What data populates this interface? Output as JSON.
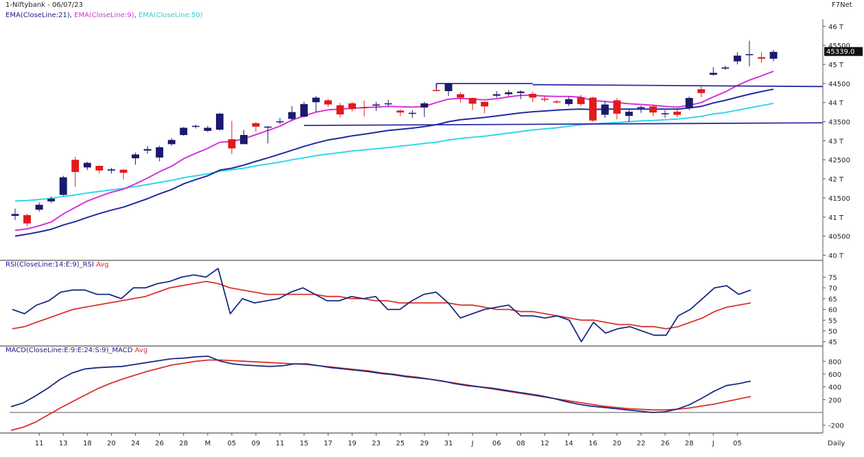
{
  "header": {
    "title": "1-Niftybank - 06/07/23",
    "brand": "F7Net",
    "ema_labels": [
      {
        "text": "EMA(CloseLine:21)",
        "color": "#1a1a8c"
      },
      {
        "text": ", ",
        "color": "#1a1a8c"
      },
      {
        "text": "EMA(CloseLine:9)",
        "color": "#d633d6"
      },
      {
        "text": ", ",
        "color": "#1a1a8c"
      },
      {
        "text": "EMA(CloseLine:50)",
        "color": "#33cccc"
      }
    ],
    "last_price_label": "45339.0"
  },
  "rsi_header": {
    "name": "RSI(CloseLine:14:E:9)_RSI",
    "avg": "Avg"
  },
  "macd_header": {
    "name": "MACD(CloseLine:E:9:E:24:S:9)_MACD",
    "avg": "Avg"
  },
  "colors": {
    "up_candle": "#1a1a6e",
    "down_candle": "#e01b1b",
    "ema21": "#1f2a9e",
    "ema9": "#d633d6",
    "ema50": "#33d6e6",
    "rsi": "#1a2a80",
    "rsi_avg": "#d8322b",
    "macd": "#1a2a80",
    "macd_avg": "#d8322b",
    "trendline": "#2a2aa8",
    "axis": "#333333"
  },
  "chart_data": [
    {
      "type": "candlestick",
      "title": "1-Niftybank - 06/07/23",
      "y_ticks": [
        {
          "value": 46000,
          "label": "46 T"
        },
        {
          "value": 45500,
          "label": "45500"
        },
        {
          "value": 45000,
          "label": "45 T"
        },
        {
          "value": 44500,
          "label": "44500"
        },
        {
          "value": 44000,
          "label": "44 T"
        },
        {
          "value": 43500,
          "label": "43500"
        },
        {
          "value": 43000,
          "label": "43 T"
        },
        {
          "value": 42500,
          "label": "42500"
        },
        {
          "value": 42000,
          "label": "42 T"
        },
        {
          "value": 41500,
          "label": "41500"
        },
        {
          "value": 41000,
          "label": "41 T"
        },
        {
          "value": 40500,
          "label": "40500"
        },
        {
          "value": 40000,
          "label": "40 T"
        }
      ],
      "ylim": [
        39900,
        46150
      ],
      "x_labels": [
        "11",
        "13",
        "18",
        "20",
        "24",
        "26",
        "28",
        "M",
        "05",
        "09",
        "11",
        "15",
        "17",
        "19",
        "23",
        "25",
        "29",
        "31",
        "J",
        "06",
        "08",
        "12",
        "14",
        "16",
        "20",
        "22",
        "26",
        "28",
        "J",
        "05"
      ],
      "x_label_index": [
        2,
        4,
        6,
        8,
        10,
        12,
        14,
        16,
        18,
        20,
        22,
        24,
        26,
        28,
        30,
        32,
        34,
        36,
        38,
        40,
        42,
        44,
        46,
        48,
        50,
        52,
        54,
        56,
        58,
        60
      ],
      "xlabel_right": "Daily",
      "ohlc": [
        [
          41030,
          41080,
          41220,
          40920
        ],
        [
          41050,
          40830,
          41080,
          40760
        ],
        [
          41190,
          41320,
          41380,
          41140
        ],
        [
          41410,
          41480,
          41540,
          41370
        ],
        [
          41580,
          42040,
          42080,
          41560
        ],
        [
          42500,
          42180,
          42580,
          41790
        ],
        [
          42300,
          42420,
          42450,
          42230
        ],
        [
          42340,
          42220,
          42350,
          42140
        ],
        [
          42220,
          42250,
          42290,
          42140
        ],
        [
          42240,
          42160,
          42260,
          41980
        ],
        [
          42540,
          42640,
          42690,
          42370
        ],
        [
          42740,
          42780,
          42860,
          42660
        ],
        [
          42560,
          42830,
          42870,
          42460
        ],
        [
          42910,
          43020,
          43070,
          42870
        ],
        [
          43150,
          43340,
          43360,
          43130
        ],
        [
          43380,
          43390,
          43420,
          43320
        ],
        [
          43260,
          43340,
          43390,
          43230
        ],
        [
          43290,
          43710,
          43730,
          43270
        ],
        [
          43040,
          42800,
          43520,
          42650
        ],
        [
          42910,
          43150,
          43280,
          42930
        ],
        [
          43460,
          43370,
          43490,
          43240
        ],
        [
          43360,
          43370,
          43380,
          42930
        ],
        [
          43510,
          43510,
          43600,
          43430
        ],
        [
          43570,
          43750,
          43910,
          43520
        ],
        [
          43630,
          43960,
          44020,
          43610
        ],
        [
          44010,
          44130,
          44170,
          43760
        ],
        [
          44060,
          43950,
          44100,
          43890
        ],
        [
          43930,
          43690,
          43990,
          43610
        ],
        [
          43980,
          43830,
          44010,
          43770
        ],
        [
          43880,
          43870,
          44050,
          43640
        ],
        [
          43920,
          43950,
          44020,
          43780
        ],
        [
          43970,
          43980,
          44070,
          43900
        ],
        [
          43790,
          43740,
          43820,
          43650
        ],
        [
          43730,
          43730,
          43800,
          43600
        ],
        [
          43870,
          43980,
          44020,
          43620
        ],
        [
          44330,
          44320,
          44400,
          44290
        ],
        [
          44300,
          44500,
          44520,
          44170
        ],
        [
          44220,
          44130,
          44270,
          44000
        ],
        [
          44120,
          43970,
          44130,
          43800
        ],
        [
          44020,
          43900,
          44020,
          43720
        ],
        [
          44180,
          44220,
          44300,
          44130
        ],
        [
          44220,
          44270,
          44330,
          44160
        ],
        [
          44250,
          44290,
          44320,
          44090
        ],
        [
          44230,
          44130,
          44290,
          44010
        ],
        [
          44100,
          44080,
          44190,
          44020
        ],
        [
          44030,
          44010,
          44070,
          43980
        ],
        [
          43960,
          44090,
          44150,
          43910
        ],
        [
          44140,
          43960,
          44200,
          43910
        ],
        [
          44130,
          43530,
          44150,
          43490
        ],
        [
          43680,
          43950,
          44030,
          43600
        ],
        [
          44060,
          43710,
          44120,
          43560
        ],
        [
          43650,
          43760,
          43820,
          43490
        ],
        [
          43850,
          43880,
          43920,
          43730
        ],
        [
          43900,
          43740,
          43950,
          43650
        ],
        [
          43710,
          43720,
          43800,
          43600
        ],
        [
          43760,
          43680,
          43850,
          43620
        ],
        [
          43850,
          44120,
          44160,
          43800
        ],
        [
          44350,
          44250,
          44440,
          44140
        ],
        [
          44730,
          44780,
          44930,
          44700
        ],
        [
          44890,
          44920,
          44970,
          44860
        ],
        [
          45080,
          45230,
          45320,
          45000
        ],
        [
          45260,
          45270,
          45620,
          44950
        ],
        [
          45190,
          45150,
          45320,
          45050
        ],
        [
          45150,
          45330,
          45380,
          45080
        ]
      ],
      "ema9": [
        40650,
        40690,
        40770,
        40870,
        41080,
        41250,
        41420,
        41540,
        41650,
        41730,
        41870,
        42020,
        42190,
        42330,
        42530,
        42670,
        42800,
        42960,
        42980,
        43050,
        43160,
        43270,
        43380,
        43540,
        43650,
        43750,
        43810,
        43830,
        43850,
        43870,
        43880,
        43900,
        43890,
        43880,
        43900,
        44000,
        44090,
        44110,
        44090,
        44070,
        44100,
        44150,
        44190,
        44190,
        44170,
        44160,
        44160,
        44140,
        44050,
        44030,
        44000,
        43970,
        43950,
        43930,
        43900,
        43880,
        43930,
        44000,
        44150,
        44280,
        44450,
        44590,
        44700,
        44820
      ],
      "ema21": [
        40500,
        40550,
        40610,
        40680,
        40790,
        40880,
        40990,
        41090,
        41180,
        41260,
        41370,
        41480,
        41610,
        41720,
        41870,
        41980,
        42080,
        42230,
        42280,
        42360,
        42460,
        42550,
        42650,
        42750,
        42850,
        42940,
        43020,
        43070,
        43130,
        43170,
        43220,
        43270,
        43300,
        43330,
        43370,
        43420,
        43500,
        43550,
        43580,
        43610,
        43650,
        43690,
        43730,
        43760,
        43780,
        43800,
        43820,
        43830,
        43820,
        43830,
        43830,
        43830,
        43830,
        43830,
        43830,
        43830,
        43860,
        43900,
        43990,
        44060,
        44140,
        44220,
        44290,
        44350
      ],
      "ema50": [
        40700,
        40710,
        40740,
        40770,
        40820,
        40860,
        40910,
        40950,
        40990,
        41030,
        41080,
        41130,
        41190,
        41240,
        41310,
        41360,
        41410,
        41480,
        41520,
        41560,
        41620,
        41670,
        41720,
        41780,
        41830,
        41890,
        41930,
        41970,
        42010,
        42040,
        42070,
        42100,
        42140,
        42170,
        42210,
        42240,
        42300,
        42340,
        42370,
        42400,
        42440,
        42480,
        42520,
        42560,
        42590,
        42620,
        42660,
        42700,
        42720,
        42740,
        42760,
        42780,
        42800,
        42810,
        42830,
        42850,
        42880,
        42920,
        42980,
        43020,
        43080,
        43140,
        43200,
        43260
      ],
      "ema50_offset": 720,
      "trendlines": [
        {
          "from": [
            35,
            44500
          ],
          "to": [
            43,
            44500
          ]
        },
        {
          "from": [
            35,
            44500
          ],
          "to": [
            35,
            44350
          ]
        },
        {
          "from": [
            43,
            44470
          ],
          "to": [
            65,
            44420
          ]
        },
        {
          "from": [
            24,
            43400
          ],
          "to": [
            65,
            43470
          ]
        }
      ]
    },
    {
      "type": "line",
      "title": "RSI(CloseLine:14:E:9)_RSI",
      "series": [
        {
          "name": "RSI",
          "values": [
            60,
            58,
            62,
            64,
            68,
            69,
            69,
            67,
            67,
            65,
            70,
            70,
            72,
            73,
            75,
            76,
            75,
            79,
            58,
            65,
            63,
            64,
            65,
            68,
            70,
            67,
            64,
            64,
            66,
            65,
            66,
            60,
            60,
            64,
            67,
            68,
            63,
            56,
            58,
            60,
            61,
            62,
            57,
            57,
            56,
            57,
            55,
            45,
            54,
            49,
            51,
            52,
            50,
            48,
            48,
            57,
            60,
            65,
            70,
            71,
            67,
            69
          ]
        },
        {
          "name": "Avg",
          "values": [
            51,
            52,
            54,
            56,
            58,
            60,
            61,
            62,
            63,
            64,
            65,
            66,
            68,
            70,
            71,
            72,
            73,
            72,
            70,
            69,
            68,
            67,
            67,
            67,
            67,
            67,
            66,
            66,
            65,
            65,
            64,
            64,
            63,
            63,
            63,
            63,
            63,
            62,
            62,
            61,
            60,
            60,
            59,
            59,
            58,
            57,
            56,
            55,
            55,
            54,
            53,
            53,
            52,
            52,
            51,
            52,
            54,
            56,
            59,
            61,
            62,
            63
          ]
        }
      ],
      "y_ticks": [
        45,
        50,
        55,
        60,
        65,
        70,
        75
      ],
      "ylim": [
        43,
        78
      ]
    },
    {
      "type": "line",
      "title": "MACD(CloseLine:E:9:E:24:S:9)_MACD",
      "series": [
        {
          "name": "MACD",
          "values": [
            90,
            150,
            260,
            380,
            520,
            620,
            680,
            700,
            710,
            720,
            750,
            780,
            810,
            840,
            850,
            870,
            880,
            800,
            760,
            740,
            730,
            720,
            730,
            760,
            760,
            730,
            700,
            680,
            660,
            640,
            610,
            590,
            560,
            540,
            520,
            490,
            450,
            420,
            400,
            380,
            350,
            320,
            290,
            260,
            220,
            170,
            130,
            100,
            80,
            60,
            40,
            20,
            0,
            10,
            50,
            120,
            220,
            330,
            420,
            450,
            490
          ]
        },
        {
          "name": "Avg",
          "values": [
            -280,
            -230,
            -150,
            -40,
            70,
            170,
            270,
            370,
            450,
            520,
            580,
            640,
            690,
            740,
            770,
            800,
            820,
            820,
            810,
            800,
            790,
            780,
            770,
            760,
            750,
            730,
            710,
            690,
            670,
            650,
            620,
            600,
            570,
            550,
            520,
            490,
            460,
            430,
            400,
            370,
            340,
            310,
            280,
            250,
            220,
            190,
            160,
            130,
            100,
            80,
            60,
            50,
            40,
            40,
            50,
            70,
            100,
            130,
            170,
            210,
            250
          ]
        }
      ],
      "y_ticks": [
        {
          "value": 800,
          "label": "800"
        },
        {
          "value": 600,
          "label": "600"
        },
        {
          "value": 400,
          "label": "400"
        },
        {
          "value": 200,
          "label": "200"
        },
        {
          "value": -200,
          "label": "-200"
        }
      ],
      "ylim": [
        -300,
        900
      ]
    }
  ]
}
